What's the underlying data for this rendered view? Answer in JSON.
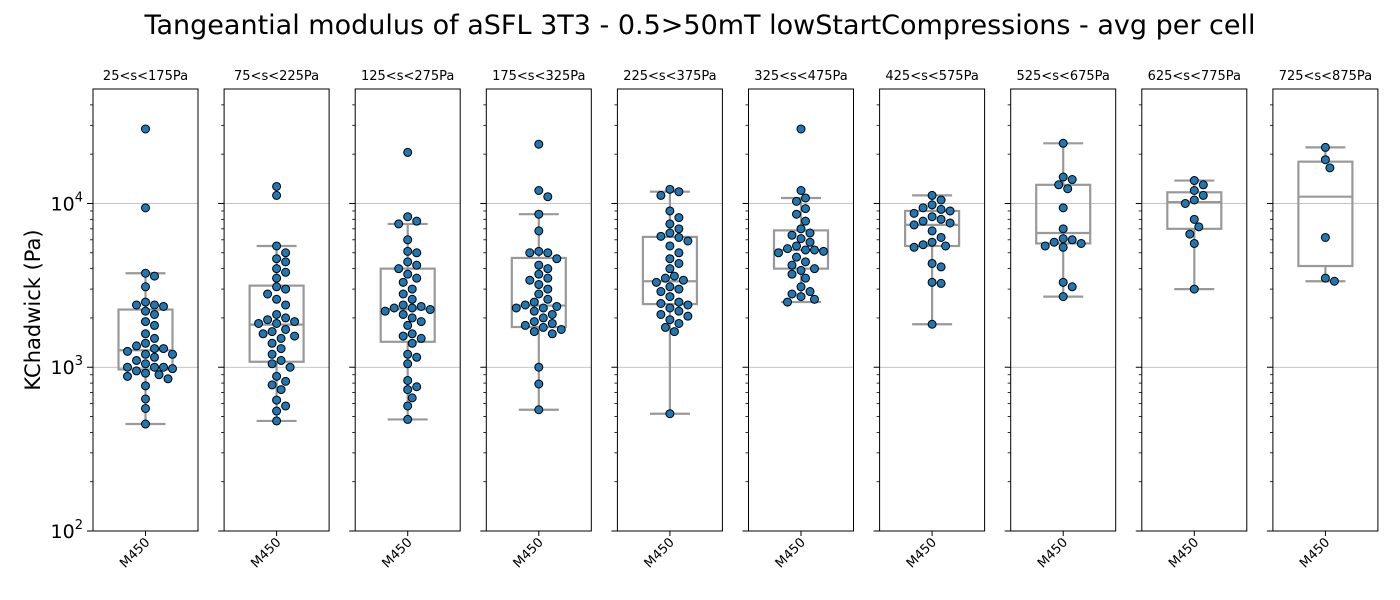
{
  "chart_data": {
    "type": "box-swarm",
    "title": "Tangeantial modulus of aSFL 3T3 - 0.5>50mT lowStartCompressions - avg per cell",
    "ylabel": "KChadwick (Pa)",
    "yscale": "log",
    "ylim": [
      100,
      50000
    ],
    "yticks": [
      {
        "value": 100,
        "base": "10",
        "exp": "2"
      },
      {
        "value": 1000,
        "base": "10",
        "exp": "3"
      },
      {
        "value": 10000,
        "base": "10",
        "exp": "4"
      }
    ],
    "grid": "horizontal-major",
    "colors": {
      "points": "#1f77b4",
      "point_edge": "#000000",
      "box": "#999999",
      "grid": "#b0b0b0"
    },
    "panels": [
      {
        "title": "25<s<175Pa",
        "category": "M450",
        "box": {
          "q1": 970,
          "median": 1270,
          "q3": 2250,
          "whisker_low": 450,
          "whisker_high": 3750
        },
        "points": [
          28500,
          9400,
          3750,
          3600,
          3100,
          2500,
          2400,
          2400,
          2350,
          2200,
          2100,
          1900,
          1800,
          1600,
          1500,
          1400,
          1350,
          1300,
          1300,
          1250,
          1200,
          1200,
          1150,
          1100,
          1050,
          1000,
          1000,
          1000,
          980,
          950,
          920,
          900,
          880,
          850,
          770,
          640,
          560,
          450
        ]
      },
      {
        "title": "75<s<225Pa",
        "category": "M450",
        "box": {
          "q1": 1080,
          "median": 1820,
          "q3": 3150,
          "whisker_low": 470,
          "whisker_high": 5500
        },
        "points": [
          12700,
          11200,
          5500,
          5000,
          4600,
          4400,
          4000,
          3800,
          3500,
          3100,
          3000,
          2800,
          2600,
          2400,
          2100,
          2000,
          1950,
          1900,
          1850,
          1850,
          1700,
          1650,
          1600,
          1550,
          1500,
          1400,
          1300,
          1200,
          1100,
          1050,
          1000,
          880,
          820,
          780,
          730,
          630,
          580,
          540,
          470
        ]
      },
      {
        "title": "125<s<275Pa",
        "category": "M450",
        "box": {
          "q1": 1430,
          "median": 2260,
          "q3": 4000,
          "whisker_low": 480,
          "whisker_high": 7500
        },
        "points": [
          20500,
          8300,
          7800,
          7500,
          6000,
          5100,
          5000,
          4400,
          4200,
          4000,
          3700,
          3500,
          3300,
          3000,
          2800,
          2600,
          2400,
          2350,
          2300,
          2300,
          2250,
          2200,
          2100,
          2000,
          1900,
          1800,
          1600,
          1550,
          1500,
          1400,
          1200,
          1150,
          1050,
          830,
          760,
          730,
          650,
          580,
          480
        ]
      },
      {
        "title": "175<s<325Pa",
        "category": "M450",
        "box": {
          "q1": 1760,
          "median": 2380,
          "q3": 4650,
          "whisker_low": 550,
          "whisker_high": 8600
        },
        "points": [
          23000,
          12000,
          11000,
          8600,
          6800,
          5100,
          5000,
          5000,
          4600,
          4200,
          4000,
          3700,
          3500,
          3400,
          3200,
          3000,
          2800,
          2600,
          2500,
          2400,
          2350,
          2300,
          2300,
          2200,
          2100,
          2000,
          1900,
          1850,
          1800,
          1750,
          1700,
          1650,
          1600,
          1000,
          790,
          550
        ]
      },
      {
        "title": "225<s<375Pa",
        "category": "M450",
        "box": {
          "q1": 2430,
          "median": 3350,
          "q3": 6250,
          "whisker_low": 520,
          "whisker_high": 11800
        },
        "points": [
          12200,
          11800,
          11200,
          9000,
          8200,
          7500,
          7000,
          6600,
          6300,
          6200,
          5900,
          5500,
          5000,
          4600,
          4300,
          4000,
          3600,
          3500,
          3400,
          3300,
          3100,
          3000,
          2900,
          2700,
          2500,
          2450,
          2400,
          2300,
          2200,
          2100,
          2050,
          1950,
          1850,
          1750,
          1650,
          520
        ]
      },
      {
        "title": "325<s<475Pa",
        "category": "M450",
        "box": {
          "q1": 4000,
          "median": 5200,
          "q3": 6850,
          "whisker_low": 2500,
          "whisker_high": 10800
        },
        "points": [
          28500,
          12000,
          10800,
          10300,
          9300,
          8600,
          7800,
          7000,
          6600,
          6400,
          6100,
          5800,
          5500,
          5300,
          5200,
          5200,
          5100,
          5000,
          4700,
          4400,
          4200,
          4000,
          3900,
          3700,
          3500,
          3100,
          2900,
          2800,
          2700,
          2600,
          2500
        ]
      },
      {
        "title": "425<s<575Pa",
        "category": "M450",
        "box": {
          "q1": 5500,
          "median": 7400,
          "q3": 9000,
          "whisker_low": 1830,
          "whisker_high": 11200
        },
        "points": [
          11200,
          10500,
          9800,
          9400,
          9200,
          9000,
          8700,
          8300,
          8000,
          7800,
          7600,
          7400,
          6800,
          6200,
          5800,
          5600,
          5500,
          5400,
          4300,
          4100,
          3300,
          3250,
          1830
        ]
      },
      {
        "title": "525<s<675Pa",
        "category": "M450",
        "box": {
          "q1": 5700,
          "median": 6600,
          "q3": 13000,
          "whisker_low": 2700,
          "whisker_high": 23300
        },
        "points": [
          23300,
          14500,
          14000,
          13000,
          12300,
          9400,
          7000,
          6100,
          6000,
          5800,
          5700,
          5500,
          5400,
          3300,
          3100,
          2700
        ]
      },
      {
        "title": "625<s<775Pa",
        "category": "M450",
        "box": {
          "q1": 7000,
          "median": 10200,
          "q3": 11700,
          "whisker_low": 3000,
          "whisker_high": 13800
        },
        "points": [
          13800,
          13000,
          12000,
          11200,
          10500,
          10000,
          8000,
          7200,
          6500,
          5700,
          3000
        ]
      },
      {
        "title": "725<s<875Pa",
        "category": "M450",
        "box": {
          "q1": 4150,
          "median": 11000,
          "q3": 18000,
          "whisker_low": 3350,
          "whisker_high": 22000
        },
        "points": [
          22000,
          18500,
          16500,
          6200,
          3500,
          3350
        ]
      }
    ]
  }
}
